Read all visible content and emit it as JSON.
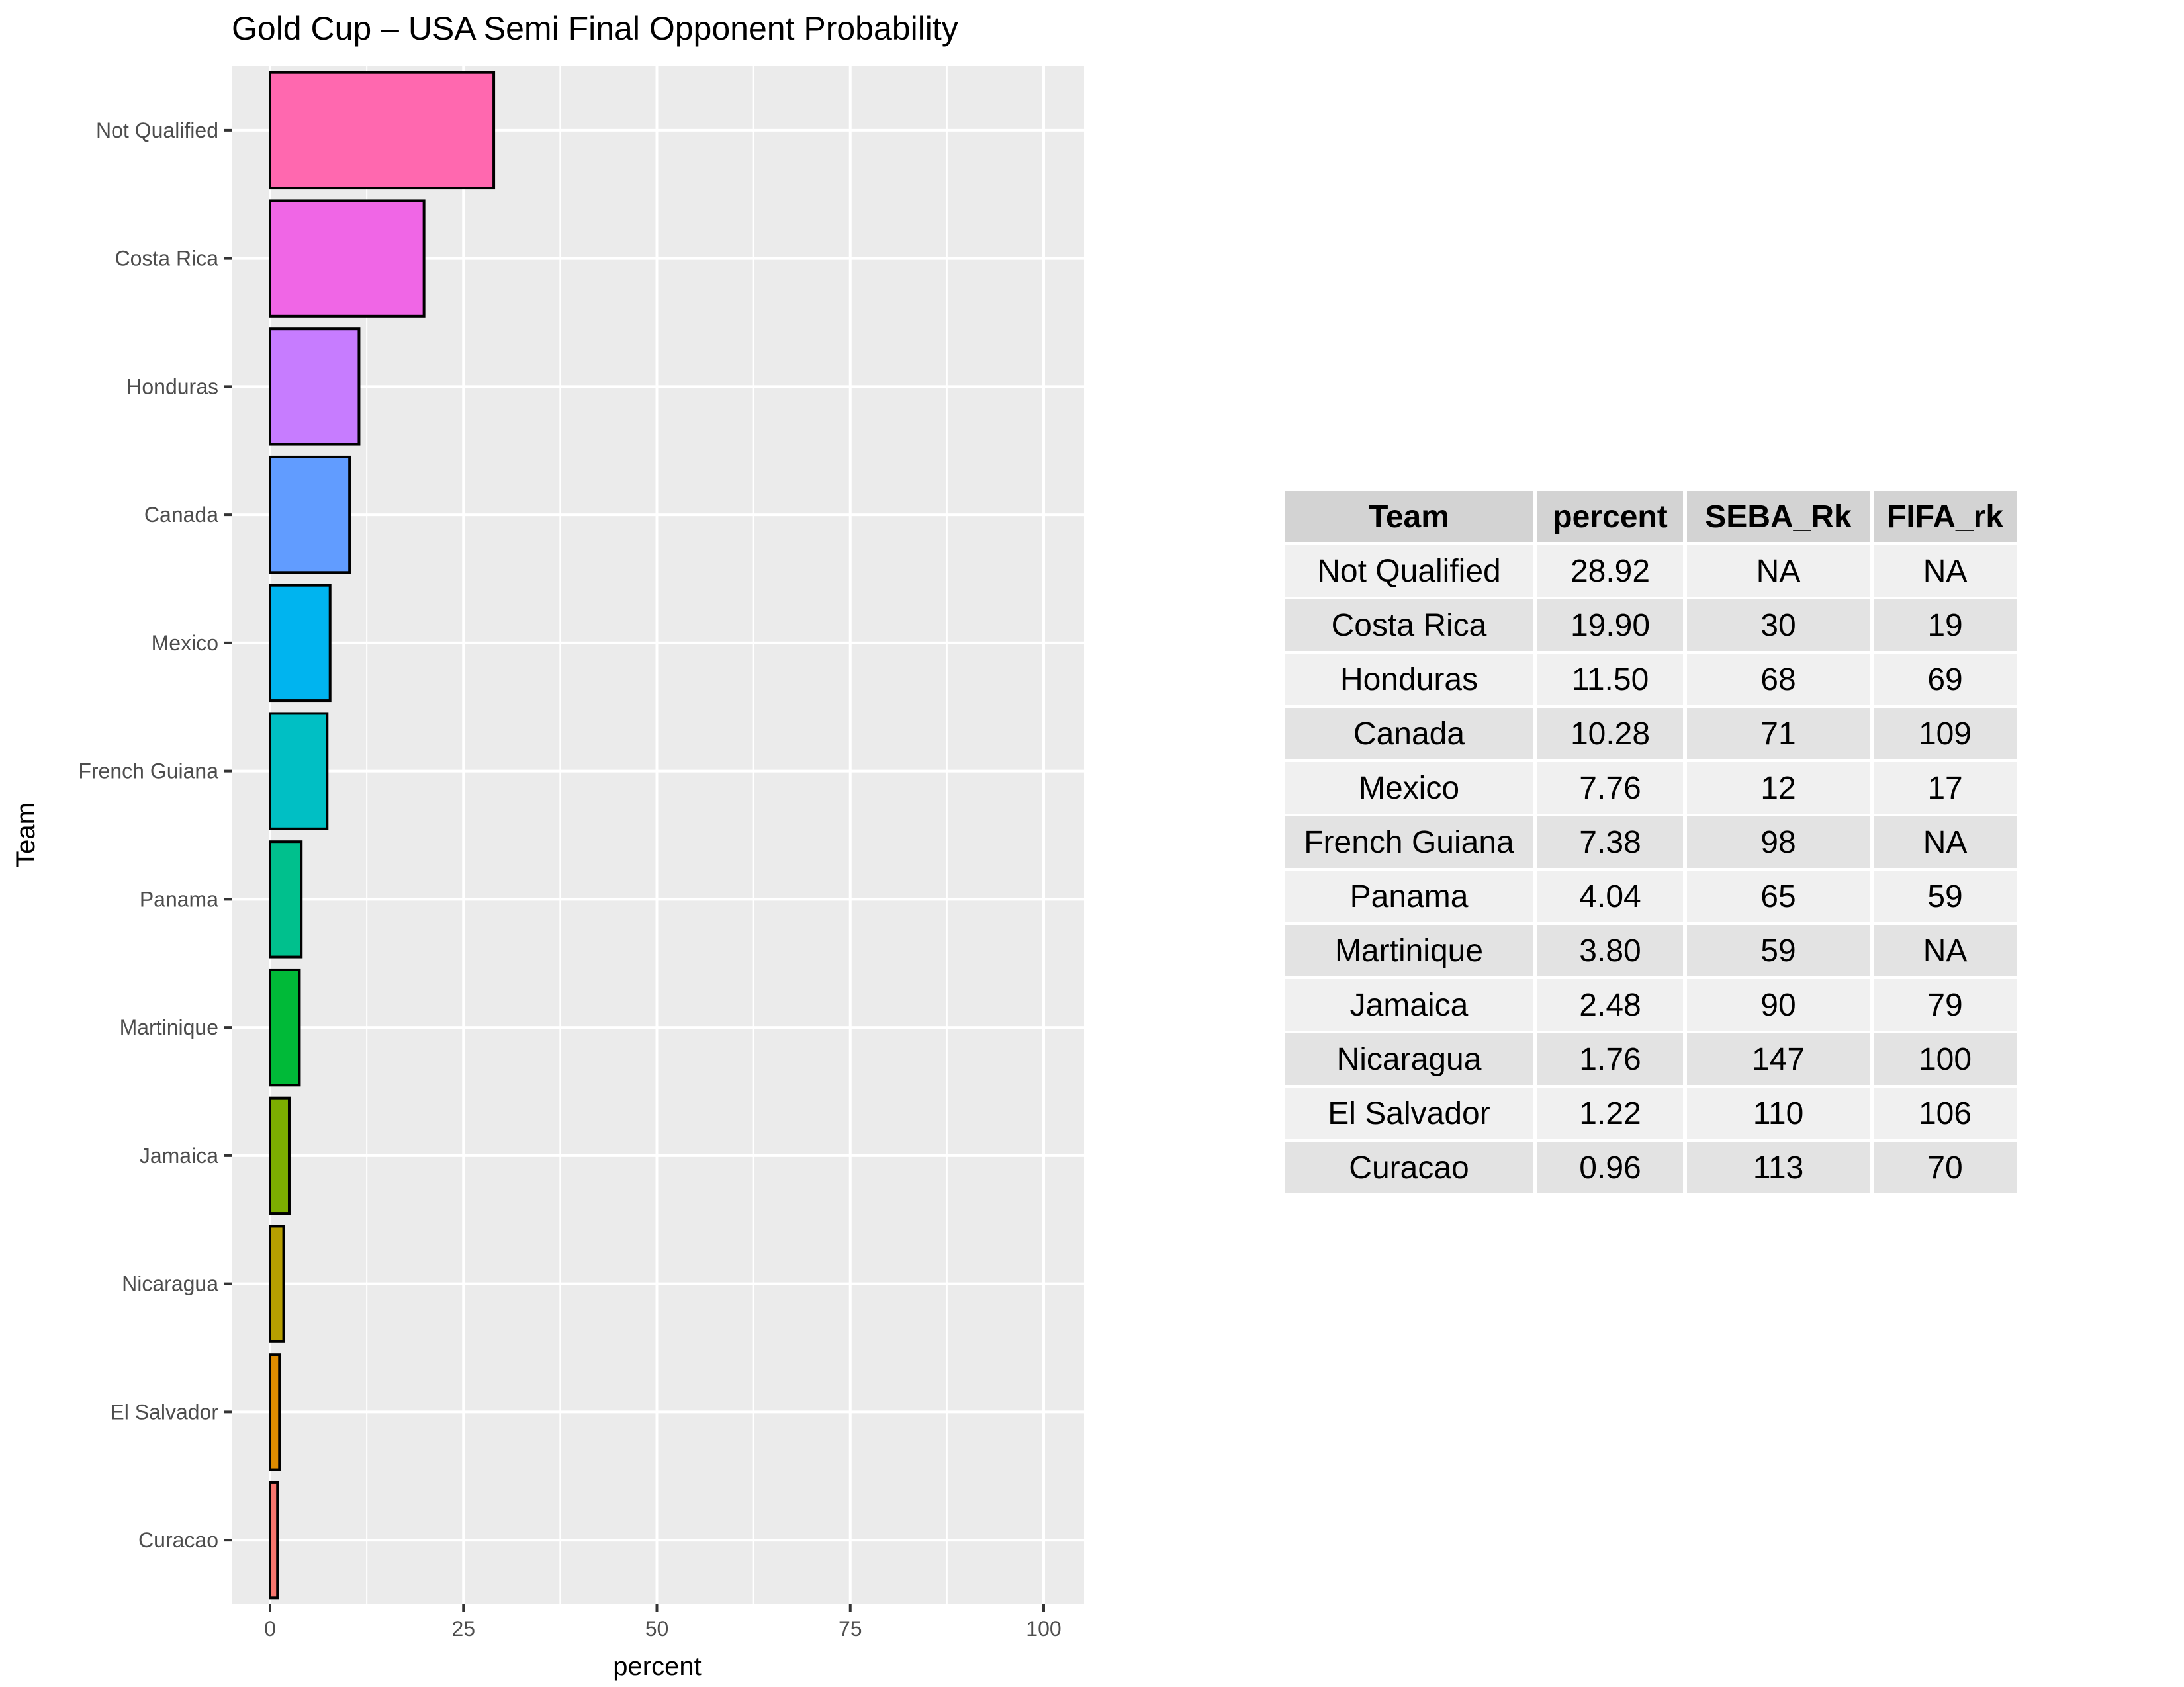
{
  "chart_data": {
    "type": "bar",
    "orientation": "horizontal",
    "title": "Gold Cup – USA Semi Final Opponent Probability",
    "xlabel": "percent",
    "ylabel": "Team",
    "xlim": [
      0,
      100
    ],
    "x_ticks": [
      "0",
      "25",
      "50",
      "75",
      "100"
    ],
    "x_tick_values": [
      0,
      25,
      50,
      75,
      100
    ],
    "grid": true,
    "categories": [
      "Not Qualified",
      "Costa Rica",
      "Honduras",
      "Canada",
      "Mexico",
      "French Guiana",
      "Panama",
      "Martinique",
      "Jamaica",
      "Nicaragua",
      "El Salvador",
      "Curacao"
    ],
    "values": [
      28.92,
      19.9,
      11.5,
      10.28,
      7.76,
      7.38,
      4.04,
      3.8,
      2.48,
      1.76,
      1.22,
      0.96
    ],
    "colors": [
      "#FF68AF",
      "#F066E6",
      "#C77CFF",
      "#619CFF",
      "#00B4EF",
      "#00BFC4",
      "#00C08D",
      "#00BA38",
      "#7CAE00",
      "#B79F00",
      "#DE8C00",
      "#F8766D"
    ]
  },
  "table": {
    "headers": [
      "Team",
      "percent",
      "SEBA_Rk",
      "FIFA_rk"
    ],
    "rows": [
      [
        "Not Qualified",
        "28.92",
        "NA",
        "NA"
      ],
      [
        "Costa Rica",
        "19.90",
        "30",
        "19"
      ],
      [
        "Honduras",
        "11.50",
        "68",
        "69"
      ],
      [
        "Canada",
        "10.28",
        "71",
        "109"
      ],
      [
        "Mexico",
        "7.76",
        "12",
        "17"
      ],
      [
        "French Guiana",
        "7.38",
        "98",
        "NA"
      ],
      [
        "Panama",
        "4.04",
        "65",
        "59"
      ],
      [
        "Martinique",
        "3.80",
        "59",
        "NA"
      ],
      [
        "Jamaica",
        "2.48",
        "90",
        "79"
      ],
      [
        "Nicaragua",
        "1.76",
        "147",
        "100"
      ],
      [
        "El Salvador",
        "1.22",
        "110",
        "106"
      ],
      [
        "Curacao",
        "0.96",
        "113",
        "70"
      ]
    ]
  }
}
